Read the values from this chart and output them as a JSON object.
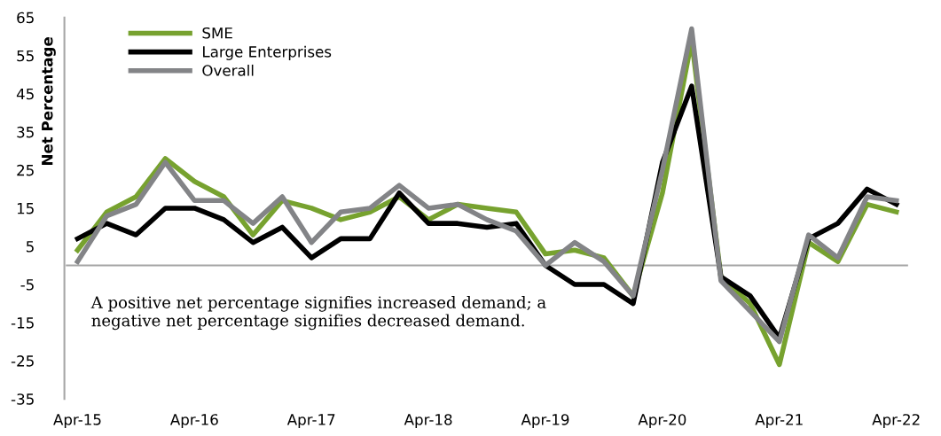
{
  "chart_data": {
    "type": "line",
    "ylabel": "Net Percentage",
    "categories": [
      "Apr-15",
      null,
      null,
      null,
      "Apr-16",
      null,
      null,
      null,
      "Apr-17",
      null,
      null,
      null,
      "Apr-18",
      null,
      null,
      null,
      "Apr-19",
      null,
      null,
      null,
      "Apr-20",
      null,
      null,
      null,
      "Apr-21",
      null,
      null,
      null,
      "Apr-22"
    ],
    "series": [
      {
        "name": "SME",
        "color": "#77a22f",
        "values": [
          4,
          14,
          18,
          28,
          22,
          18,
          8,
          17,
          15,
          12,
          14,
          18,
          12,
          16,
          15,
          14,
          3,
          4,
          2,
          -8,
          19,
          59,
          -3,
          -10,
          -26,
          6,
          1,
          16,
          14
        ]
      },
      {
        "name": "Large Enterprises",
        "color": "#000000",
        "values": [
          7,
          11,
          8,
          15,
          15,
          12,
          6,
          10,
          2,
          7,
          7,
          19,
          11,
          11,
          10,
          11,
          0,
          -5,
          -5,
          -10,
          27,
          47,
          -3,
          -8,
          -19,
          7,
          11,
          20,
          16
        ]
      },
      {
        "name": "Overall",
        "color": "#838487",
        "values": [
          1,
          13,
          16,
          27,
          17,
          17,
          11,
          18,
          6,
          14,
          15,
          21,
          15,
          16,
          12,
          9,
          0,
          6,
          1,
          -8,
          25,
          62,
          -4,
          -12,
          -20,
          8,
          2,
          18,
          17
        ]
      }
    ],
    "ylim": [
      -35,
      65
    ],
    "yticks": [
      -35,
      -25,
      -15,
      -5,
      5,
      15,
      25,
      35,
      45,
      55,
      65
    ],
    "ref_lines": [
      {
        "axis": "y",
        "value": 0,
        "label": null,
        "color": "#a6a6a6"
      }
    ],
    "annotations": [
      "A positive net percentage signifies increased demand; a\nnegative net percentage signifies decreased demand."
    ],
    "grid": false,
    "legend": "top left",
    "marker": "none",
    "line_style": "solid"
  }
}
